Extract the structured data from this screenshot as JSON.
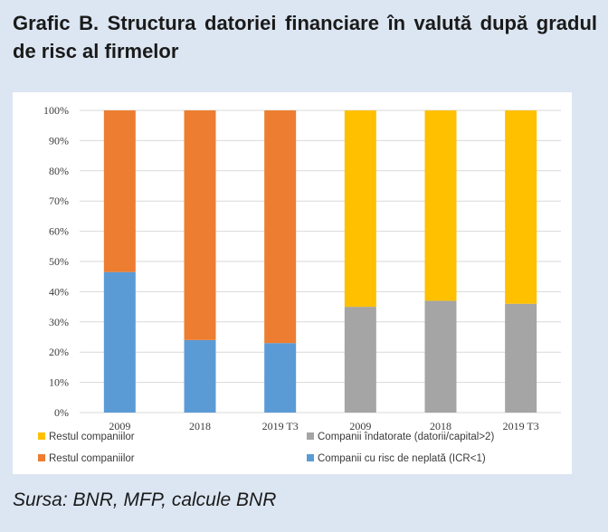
{
  "title": "Grafic B. Structura datoriei financiare în valută după gradul de risc al firmelor",
  "source": "Sursa: BNR, MFP, calcule BNR",
  "chart_data": {
    "type": "bar",
    "stacked": true,
    "percent_stacked": true,
    "categories": [
      "2009",
      "2018",
      "2019 T3",
      "2009",
      "2018",
      "2019 T3"
    ],
    "y_ticks": [
      "0%",
      "10%",
      "20%",
      "30%",
      "40%",
      "50%",
      "60%",
      "70%",
      "80%",
      "90%",
      "100%"
    ],
    "ylim": [
      0,
      100
    ],
    "grid": true,
    "legend_position": "bottom",
    "series": [
      {
        "name": "Companii cu risc de neplată (ICR<1)",
        "color": "#5b9bd5",
        "values": [
          46.5,
          24,
          23,
          null,
          null,
          null
        ]
      },
      {
        "name": "Restul companiilor",
        "color": "#ed7d31",
        "values": [
          53.5,
          76,
          77,
          null,
          null,
          null
        ]
      },
      {
        "name": "Companii îndatorate (datorii/capital>2)",
        "color": "#a5a5a5",
        "values": [
          null,
          null,
          null,
          35,
          37,
          36
        ]
      },
      {
        "name": "Restul companiilor",
        "color": "#ffc000",
        "values": [
          null,
          null,
          null,
          65,
          63,
          64
        ]
      }
    ],
    "legend_order": [
      3,
      2,
      1,
      0
    ]
  }
}
